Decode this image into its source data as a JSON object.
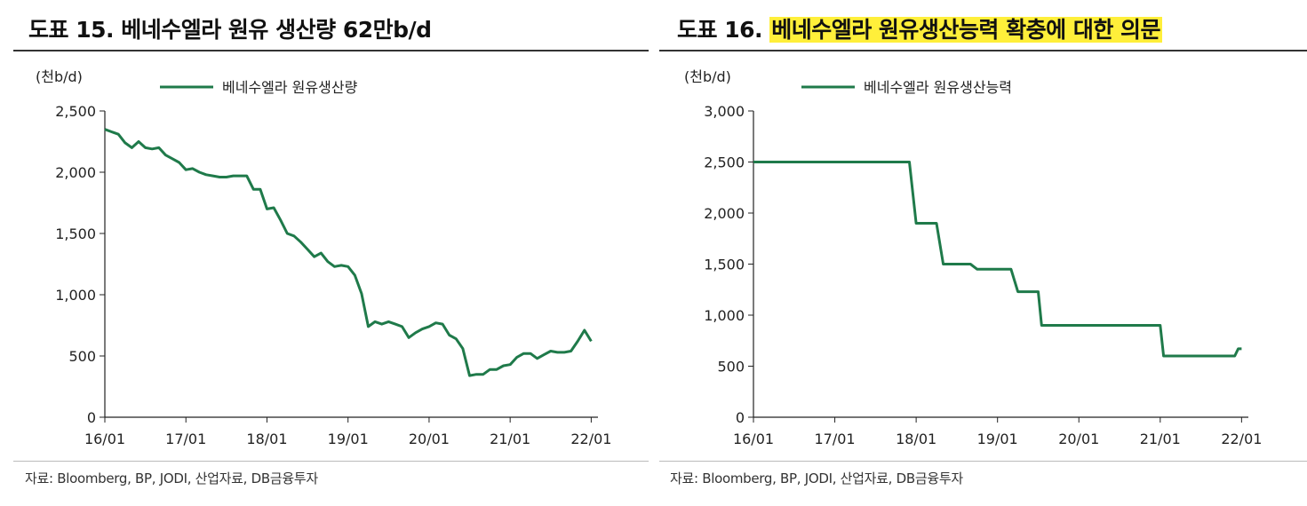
{
  "colors": {
    "series": "#1f7a4a",
    "axis": "#222222",
    "highlight": "#ffef3a"
  },
  "panels": [
    {
      "title_prefix": "도표 15.",
      "title_main": "베네수엘라 원유 생산량 62만b/d",
      "source": "자료: Bloomberg, BP, JODI, 산업자료, DB금융투자"
    },
    {
      "title_prefix": "도표 16.",
      "title_main": "베네수엘라 원유생산능력 확충에 대한 의문",
      "source": "자료: Bloomberg, BP, JODI, 산업자료, DB금융투자"
    }
  ],
  "chart_data": [
    {
      "type": "line",
      "unit_label": "(천b/d)",
      "legend": "top-left",
      "grid": false,
      "xlabel": "",
      "ylabel": "",
      "x_tick_labels": [
        "16/01",
        "17/01",
        "18/01",
        "19/01",
        "20/01",
        "21/01",
        "22/01"
      ],
      "y_tick_labels": [
        "0",
        "500",
        "1,000",
        "1,500",
        "2,000",
        "2,500"
      ],
      "ylim": [
        0,
        2500
      ],
      "xlim": [
        0,
        73
      ],
      "series": [
        {
          "name": "베네수엘라 원유생산량",
          "x": [
            0,
            1,
            2,
            3,
            4,
            5,
            6,
            7,
            8,
            9,
            10,
            11,
            12,
            13,
            14,
            15,
            16,
            17,
            18,
            19,
            20,
            21,
            22,
            23,
            24,
            25,
            26,
            27,
            28,
            29,
            30,
            31,
            32,
            33,
            34,
            35,
            36,
            37,
            38,
            39,
            40,
            41,
            42,
            43,
            44,
            45,
            46,
            47,
            48,
            49,
            50,
            51,
            52,
            53,
            54,
            55,
            56,
            57,
            58,
            59,
            60,
            61,
            62,
            63,
            64,
            65,
            66,
            67,
            68,
            69,
            70,
            71,
            72
          ],
          "values": [
            2350,
            2330,
            2310,
            2240,
            2200,
            2250,
            2200,
            2190,
            2200,
            2140,
            2110,
            2080,
            2020,
            2030,
            2000,
            1980,
            1970,
            1960,
            1960,
            1970,
            1970,
            1970,
            1860,
            1860,
            1700,
            1710,
            1610,
            1500,
            1480,
            1430,
            1370,
            1310,
            1340,
            1270,
            1230,
            1240,
            1230,
            1160,
            1010,
            740,
            780,
            760,
            780,
            760,
            740,
            650,
            690,
            720,
            740,
            770,
            760,
            670,
            640,
            560,
            340,
            350,
            350,
            390,
            390,
            420,
            430,
            490,
            520,
            520,
            480,
            510,
            540,
            530,
            530,
            540,
            620,
            710,
            620
          ]
        }
      ]
    },
    {
      "type": "line",
      "unit_label": "(천b/d)",
      "legend": "top-left",
      "grid": false,
      "xlabel": "",
      "ylabel": "",
      "x_tick_labels": [
        "16/01",
        "17/01",
        "18/01",
        "19/01",
        "20/01",
        "21/01",
        "22/01"
      ],
      "y_tick_labels": [
        "0",
        "500",
        "1,000",
        "1,500",
        "2,000",
        "2,500",
        "3,000"
      ],
      "ylim": [
        0,
        3000
      ],
      "xlim": [
        0,
        73
      ],
      "series": [
        {
          "name": "베네수엘라 원유생산능력",
          "x": [
            0,
            23,
            24,
            27,
            28,
            32,
            33,
            38,
            39,
            42,
            42.5,
            60,
            60.5,
            71,
            71.5,
            72
          ],
          "values": [
            2500,
            2500,
            1900,
            1900,
            1500,
            1500,
            1450,
            1450,
            1230,
            1230,
            900,
            900,
            600,
            600,
            670,
            670
          ]
        }
      ]
    }
  ]
}
